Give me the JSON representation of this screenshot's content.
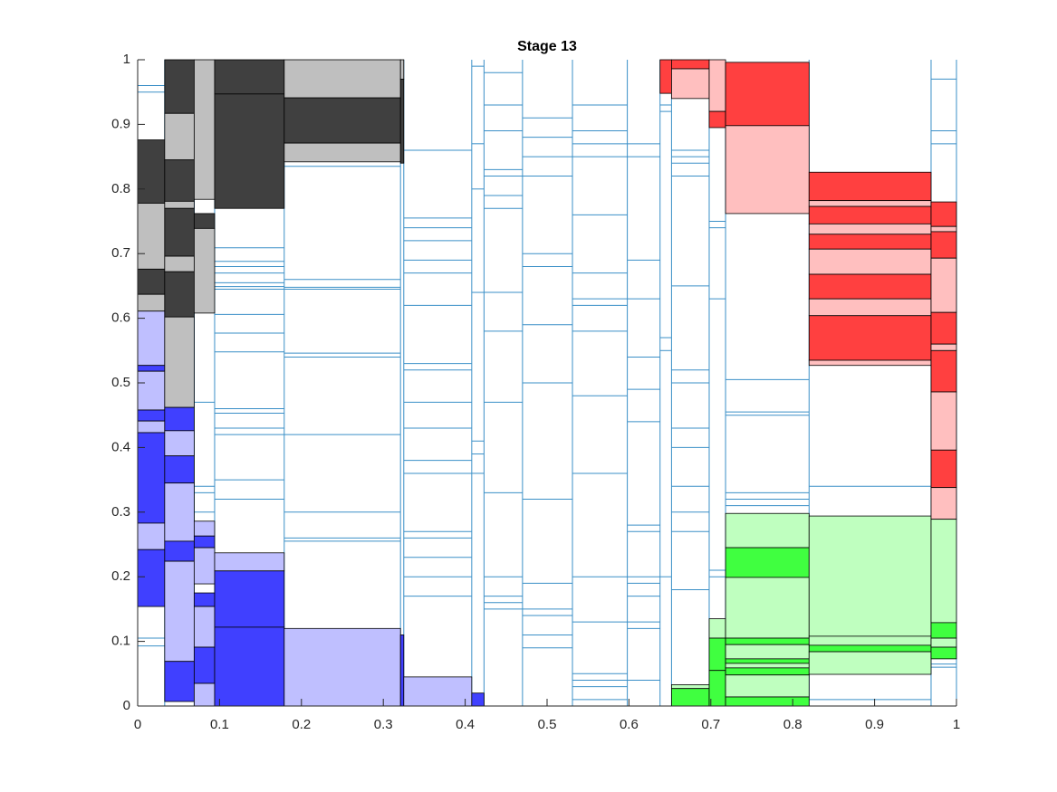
{
  "chart_data": {
    "type": "mosaic",
    "title": "Stage 13",
    "xlim": [
      0,
      1
    ],
    "ylim": [
      0,
      1
    ],
    "xticks": [
      0,
      0.1,
      0.2,
      0.3,
      0.4,
      0.5,
      0.6,
      0.7,
      0.8,
      0.9,
      1
    ],
    "yticks": [
      0,
      0.1,
      0.2,
      0.3,
      0.4,
      0.5,
      0.6,
      0.7,
      0.8,
      0.9,
      1
    ],
    "line_color": "#3a8fc7",
    "edges": [
      0,
      0.033,
      0.069,
      0.094,
      0.179,
      0.321,
      0.325,
      0.408,
      0.423,
      0.47,
      0.531,
      0.598,
      0.638,
      0.652,
      0.698,
      0.718,
      0.82,
      0.969,
      1
    ],
    "columns": [
      {
        "lines": [
          0.96,
          0.95,
          0.105,
          0.093
        ],
        "blocks": [
          {
            "y": [
              0.778,
              0.876
            ],
            "color": "#404040"
          },
          {
            "y": [
              0.676,
              0.778
            ],
            "color": "#bfbfbf"
          },
          {
            "y": [
              0.637,
              0.676
            ],
            "color": "#404040"
          },
          {
            "y": [
              0.611,
              0.637
            ],
            "color": "#bfbfbf"
          },
          {
            "y": [
              0.527,
              0.611
            ],
            "color": "#bfbfff"
          },
          {
            "y": [
              0.518,
              0.527
            ],
            "color": "#4040ff"
          },
          {
            "y": [
              0.458,
              0.518
            ],
            "color": "#bfbfff"
          },
          {
            "y": [
              0.441,
              0.458
            ],
            "color": "#4040ff"
          },
          {
            "y": [
              0.423,
              0.441
            ],
            "color": "#bfbfff"
          },
          {
            "y": [
              0.283,
              0.423
            ],
            "color": "#4040ff"
          },
          {
            "y": [
              0.242,
              0.283
            ],
            "color": "#bfbfff"
          },
          {
            "y": [
              0.154,
              0.242
            ],
            "color": "#4040ff"
          }
        ]
      },
      {
        "lines": [],
        "blocks": [
          {
            "y": [
              0.917,
              1
            ],
            "color": "#404040"
          },
          {
            "y": [
              0.845,
              0.917
            ],
            "color": "#bfbfbf"
          },
          {
            "y": [
              0.781,
              0.845
            ],
            "color": "#404040"
          },
          {
            "y": [
              0.77,
              0.781
            ],
            "color": "#bfbfbf"
          },
          {
            "y": [
              0.696,
              0.77
            ],
            "color": "#404040"
          },
          {
            "y": [
              0.672,
              0.696
            ],
            "color": "#bfbfbf"
          },
          {
            "y": [
              0.602,
              0.672
            ],
            "color": "#404040"
          },
          {
            "y": [
              0.462,
              0.602
            ],
            "color": "#bfbfbf"
          },
          {
            "y": [
              0.426,
              0.462
            ],
            "color": "#4040ff"
          },
          {
            "y": [
              0.387,
              0.426
            ],
            "color": "#bfbfff"
          },
          {
            "y": [
              0.345,
              0.387
            ],
            "color": "#4040ff"
          },
          {
            "y": [
              0.255,
              0.345
            ],
            "color": "#bfbfff"
          },
          {
            "y": [
              0.224,
              0.255
            ],
            "color": "#4040ff"
          },
          {
            "y": [
              0.069,
              0.224
            ],
            "color": "#bfbfff"
          },
          {
            "y": [
              0.007,
              0.069
            ],
            "color": "#4040ff"
          }
        ]
      },
      {
        "lines": [
          0.47,
          0.34,
          0.33,
          0.3
        ],
        "blocks": [
          {
            "y": [
              0.784,
              1
            ],
            "color": "#bfbfbf"
          },
          {
            "y": [
              0.739,
              0.762
            ],
            "color": "#404040"
          },
          {
            "y": [
              0.608,
              0.739
            ],
            "color": "#bfbfbf"
          },
          {
            "y": [
              0.263,
              0.286
            ],
            "color": "#bfbfff"
          },
          {
            "y": [
              0.245,
              0.263
            ],
            "color": "#4040ff"
          },
          {
            "y": [
              0.189,
              0.245
            ],
            "color": "#bfbfff"
          },
          {
            "y": [
              0.154,
              0.175
            ],
            "color": "#4040ff"
          },
          {
            "y": [
              0.091,
              0.154
            ],
            "color": "#bfbfff"
          },
          {
            "y": [
              0.035,
              0.091
            ],
            "color": "#4040ff"
          },
          {
            "y": [
              0,
              0.035
            ],
            "color": "#bfbfff"
          }
        ]
      },
      {
        "lines": [
          0.709,
          0.688,
          0.68,
          0.67,
          0.655,
          0.649,
          0.645,
          0.606,
          0.577,
          0.548,
          0.46,
          0.453,
          0.43,
          0.42,
          0.35,
          0.32
        ],
        "blocks": [
          {
            "y": [
              0.947,
              1
            ],
            "color": "#404040"
          },
          {
            "y": [
              0.77,
              0.947
            ],
            "color": "#404040"
          },
          {
            "y": [
              0.209,
              0.237
            ],
            "color": "#bfbfff"
          },
          {
            "y": [
              0.122,
              0.209
            ],
            "color": "#4040ff"
          },
          {
            "y": [
              0,
              0.122
            ],
            "color": "#4040ff"
          }
        ]
      },
      {
        "lines": [
          0.835,
          0.66,
          0.648,
          0.645,
          0.546,
          0.54,
          0.42,
          0.3,
          0.26,
          0.255
        ],
        "blocks": [
          {
            "y": [
              0.941,
              1
            ],
            "color": "#bfbfbf"
          },
          {
            "y": [
              0.871,
              0.941
            ],
            "color": "#404040"
          },
          {
            "y": [
              0.842,
              0.871
            ],
            "color": "#bfbfbf"
          },
          {
            "y": [
              0,
              0.12
            ],
            "color": "#bfbfff"
          }
        ]
      },
      {
        "lines": [],
        "blocks": [
          {
            "y": [
              0.97,
              1
            ],
            "color": "#bfbfbf"
          },
          {
            "y": [
              0.84,
              0.97
            ],
            "color": "#404040"
          },
          {
            "y": [
              0,
              0.11
            ],
            "color": "#4040ff"
          }
        ]
      },
      {
        "lines": [
          0.86,
          0.755,
          0.74,
          0.72,
          0.69,
          0.67,
          0.62,
          0.53,
          0.52,
          0.47,
          0.43,
          0.38,
          0.36,
          0.27,
          0.26,
          0.23,
          0.2,
          0.17
        ],
        "blocks": [
          {
            "y": [
              0,
              0.045
            ],
            "color": "#bfbfff"
          }
        ]
      },
      {
        "lines": [
          0.99,
          0.87,
          0.8,
          0.64,
          0.41,
          0.39,
          0.36
        ],
        "blocks": [
          {
            "y": [
              0,
              0.02
            ],
            "color": "#4040ff"
          }
        ]
      },
      {
        "lines": [
          0.98,
          0.93,
          0.89,
          0.83,
          0.82,
          0.79,
          0.77,
          0.64,
          0.58,
          0.47,
          0.33,
          0.2,
          0.17,
          0.16,
          0.15
        ],
        "blocks": []
      },
      {
        "lines": [
          0.91,
          0.88,
          0.85,
          0.82,
          0.7,
          0.68,
          0.59,
          0.5,
          0.32,
          0.19,
          0.15,
          0.14,
          0.11,
          0.09
        ],
        "blocks": []
      },
      {
        "lines": [
          0.93,
          0.89,
          0.87,
          0.85,
          0.76,
          0.67,
          0.63,
          0.62,
          0.58,
          0.48,
          0.36,
          0.2,
          0.13,
          0.05,
          0.04,
          0.03,
          0.01
        ],
        "blocks": []
      },
      {
        "lines": [
          0.87,
          0.85,
          0.69,
          0.63,
          0.54,
          0.49,
          0.44,
          0.28,
          0.27,
          0.2,
          0.19,
          0.17,
          0.13,
          0.12,
          0.04
        ],
        "blocks": []
      },
      {
        "lines": [
          0.93,
          0.92,
          0.57,
          0.55,
          0.2
        ],
        "blocks": [
          {
            "y": [
              0.948,
              1
            ],
            "color": "#ff4040"
          }
        ]
      },
      {
        "lines": [
          0.86,
          0.85,
          0.84,
          0.82,
          0.65,
          0.52,
          0.5,
          0.43,
          0.4,
          0.34,
          0.3,
          0.27,
          0.18
        ],
        "blocks": [
          {
            "y": [
              0.986,
              1
            ],
            "color": "#ff4040"
          },
          {
            "y": [
              0.94,
              0.986
            ],
            "color": "#ffbfbf"
          },
          {
            "y": [
              0.027,
              0.033
            ],
            "color": "#bfffbf"
          },
          {
            "y": [
              0,
              0.027
            ],
            "color": "#40ff40"
          }
        ]
      },
      {
        "lines": [
          0.75,
          0.74,
          0.63,
          0.21,
          0.2
        ],
        "blocks": [
          {
            "y": [
              0.92,
              1
            ],
            "color": "#ffbfbf"
          },
          {
            "y": [
              0.895,
              0.92
            ],
            "color": "#ff4040"
          },
          {
            "y": [
              0.105,
              0.135
            ],
            "color": "#bfffbf"
          },
          {
            "y": [
              0.055,
              0.105
            ],
            "color": "#40ff40"
          },
          {
            "y": [
              0,
              0.055
            ],
            "color": "#40ff40"
          }
        ]
      },
      {
        "lines": [
          0.505,
          0.455,
          0.45,
          0.33,
          0.32,
          0.31
        ],
        "blocks": [
          {
            "y": [
              0.898,
              0.996
            ],
            "color": "#ff4040"
          },
          {
            "y": [
              0.762,
              0.898
            ],
            "color": "#ffbfbf"
          },
          {
            "y": [
              0.245,
              0.298
            ],
            "color": "#bfffbf"
          },
          {
            "y": [
              0.199,
              0.245
            ],
            "color": "#40ff40"
          },
          {
            "y": [
              0.105,
              0.199
            ],
            "color": "#bfffbf"
          },
          {
            "y": [
              0.095,
              0.105
            ],
            "color": "#40ff40"
          },
          {
            "y": [
              0.073,
              0.095
            ],
            "color": "#bfffbf"
          },
          {
            "y": [
              0.066,
              0.073
            ],
            "color": "#40ff40"
          },
          {
            "y": [
              0.059,
              0.066
            ],
            "color": "#bfffbf"
          },
          {
            "y": [
              0.048,
              0.059
            ],
            "color": "#40ff40"
          },
          {
            "y": [
              0.014,
              0.048
            ],
            "color": "#bfffbf"
          },
          {
            "y": [
              0,
              0.014
            ],
            "color": "#40ff40"
          }
        ]
      },
      {
        "lines": [
          0.34,
          0.01
        ],
        "blocks": [
          {
            "y": [
              0.782,
              0.826
            ],
            "color": "#ff4040"
          },
          {
            "y": [
              0.773,
              0.782
            ],
            "color": "#ffbfbf"
          },
          {
            "y": [
              0.746,
              0.773
            ],
            "color": "#ff4040"
          },
          {
            "y": [
              0.73,
              0.746
            ],
            "color": "#ffbfbf"
          },
          {
            "y": [
              0.707,
              0.73
            ],
            "color": "#ff4040"
          },
          {
            "y": [
              0.668,
              0.707
            ],
            "color": "#ffbfbf"
          },
          {
            "y": [
              0.63,
              0.668
            ],
            "color": "#ff4040"
          },
          {
            "y": [
              0.604,
              0.63
            ],
            "color": "#ffbfbf"
          },
          {
            "y": [
              0.535,
              0.604
            ],
            "color": "#ff4040"
          },
          {
            "y": [
              0.527,
              0.535
            ],
            "color": "#ffbfbf"
          },
          {
            "y": [
              0.108,
              0.294
            ],
            "color": "#bfffbf"
          },
          {
            "y": [
              0.094,
              0.108
            ],
            "color": "#bfffbf"
          },
          {
            "y": [
              0.084,
              0.094
            ],
            "color": "#40ff40"
          },
          {
            "y": [
              0.049,
              0.084
            ],
            "color": "#bfffbf"
          }
        ]
      },
      {
        "lines": [
          0.97,
          0.89,
          0.87,
          0.065,
          0.06
        ],
        "blocks": [
          {
            "y": [
              0.742,
              0.78
            ],
            "color": "#ff4040"
          },
          {
            "y": [
              0.734,
              0.742
            ],
            "color": "#ffbfbf"
          },
          {
            "y": [
              0.693,
              0.734
            ],
            "color": "#ff4040"
          },
          {
            "y": [
              0.609,
              0.693
            ],
            "color": "#ffbfbf"
          },
          {
            "y": [
              0.56,
              0.609
            ],
            "color": "#ff4040"
          },
          {
            "y": [
              0.55,
              0.56
            ],
            "color": "#ffbfbf"
          },
          {
            "y": [
              0.486,
              0.55
            ],
            "color": "#ff4040"
          },
          {
            "y": [
              0.396,
              0.486
            ],
            "color": "#ffbfbf"
          },
          {
            "y": [
              0.338,
              0.396
            ],
            "color": "#ff4040"
          },
          {
            "y": [
              0.289,
              0.338
            ],
            "color": "#ffbfbf"
          },
          {
            "y": [
              0.129,
              0.289
            ],
            "color": "#bfffbf"
          },
          {
            "y": [
              0.105,
              0.129
            ],
            "color": "#40ff40"
          },
          {
            "y": [
              0.091,
              0.105
            ],
            "color": "#bfffbf"
          },
          {
            "y": [
              0.073,
              0.091
            ],
            "color": "#40ff40"
          }
        ]
      }
    ]
  }
}
